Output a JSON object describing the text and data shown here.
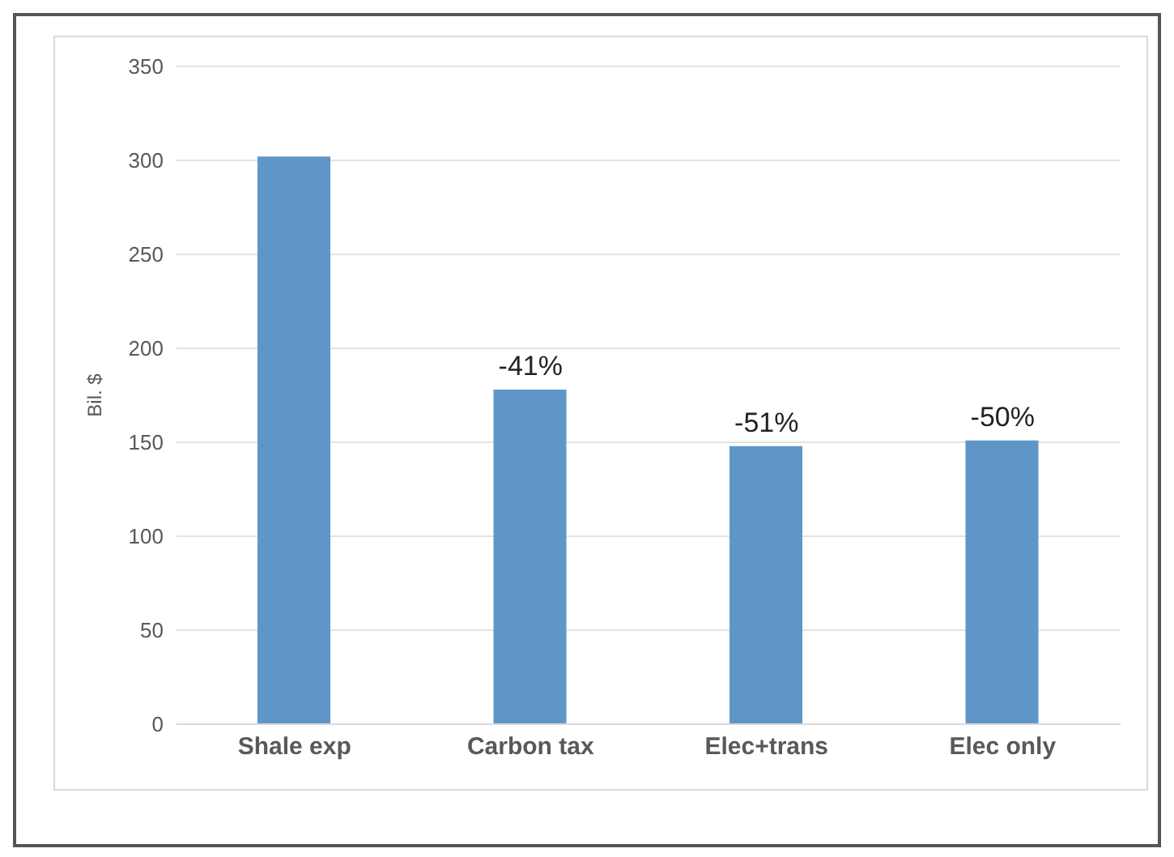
{
  "chart_data": {
    "type": "bar",
    "ylabel": "Bil. $",
    "categories": [
      "Shale exp",
      "Carbon tax",
      "Elec+trans",
      "Elec only"
    ],
    "values": [
      302,
      178,
      148,
      151
    ],
    "annotations": [
      {
        "text": "-41%",
        "x": "Carbon tax",
        "y": 178
      },
      {
        "text": "-51%",
        "x": "Elec+trans",
        "y": 148
      },
      {
        "text": "-50%",
        "x": "Elec only",
        "y": 151
      }
    ],
    "color": "#5f96c8",
    "ylim": [
      0,
      350
    ],
    "yticks": [
      0,
      50,
      100,
      150,
      200,
      250,
      300,
      350
    ],
    "grid": "y"
  }
}
